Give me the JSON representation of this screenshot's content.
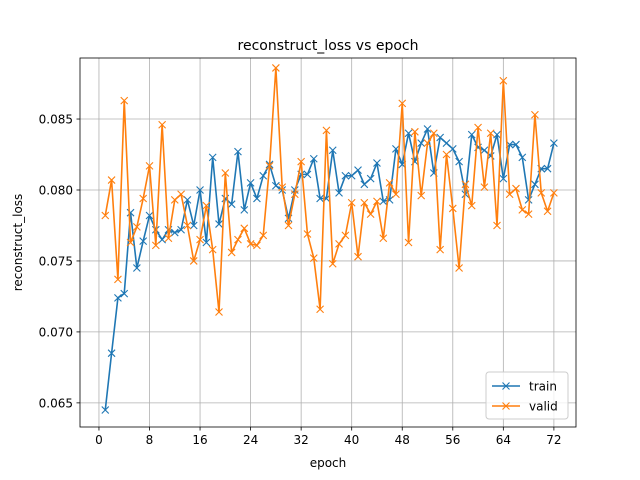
{
  "chart_data": {
    "type": "line",
    "title": "reconstruct_loss vs epoch",
    "xlabel": "epoch",
    "ylabel": "reconstruct_loss",
    "xlim": [
      -3,
      75.5
    ],
    "ylim": [
      0.0633,
      0.0893
    ],
    "xticks": [
      0,
      8,
      16,
      24,
      32,
      40,
      48,
      56,
      64,
      72
    ],
    "yticks": [
      0.065,
      0.07,
      0.075,
      0.08,
      0.085
    ],
    "ytick_labels": [
      "0.065",
      "0.070",
      "0.075",
      "0.080",
      "0.085"
    ],
    "grid": true,
    "legend_position": "lower-right",
    "marker": "x",
    "x": [
      1,
      2,
      3,
      4,
      5,
      6,
      7,
      8,
      9,
      10,
      11,
      12,
      13,
      14,
      15,
      16,
      17,
      18,
      19,
      20,
      21,
      22,
      23,
      24,
      25,
      26,
      27,
      28,
      29,
      30,
      31,
      32,
      33,
      34,
      35,
      36,
      37,
      38,
      39,
      40,
      41,
      42,
      43,
      44,
      45,
      46,
      47,
      48,
      49,
      50,
      51,
      52,
      53,
      54,
      55,
      56,
      57,
      58,
      59,
      60,
      61,
      62,
      63,
      64,
      65,
      66,
      67,
      68,
      69,
      70,
      71,
      72
    ],
    "series": [
      {
        "name": "train",
        "color": "#1f77b4",
        "values": [
          0.0645,
          0.0685,
          0.0724,
          0.0727,
          0.0784,
          0.0745,
          0.0764,
          0.0782,
          0.0772,
          0.0765,
          0.0772,
          0.077,
          0.0772,
          0.0793,
          0.0775,
          0.08,
          0.0763,
          0.0823,
          0.0776,
          0.0794,
          0.079,
          0.0827,
          0.0786,
          0.0805,
          0.0794,
          0.081,
          0.0818,
          0.0803,
          0.08,
          0.078,
          0.08,
          0.0811,
          0.0811,
          0.0822,
          0.0794,
          0.0794,
          0.0828,
          0.0798,
          0.081,
          0.081,
          0.0814,
          0.0804,
          0.0808,
          0.0819,
          0.0792,
          0.0793,
          0.0829,
          0.0818,
          0.084,
          0.082,
          0.0833,
          0.0843,
          0.0812,
          0.0837,
          0.0833,
          0.0829,
          0.082,
          0.0797,
          0.0839,
          0.083,
          0.0828,
          0.0824,
          0.0839,
          0.0808,
          0.0832,
          0.0832,
          0.0823,
          0.0793,
          0.0804,
          0.0815,
          0.0815,
          0.0833
        ]
      },
      {
        "name": "valid",
        "color": "#ff7f0e",
        "values": [
          0.0782,
          0.0807,
          0.0737,
          0.0863,
          0.0763,
          0.0774,
          0.0794,
          0.0817,
          0.0761,
          0.0846,
          0.0766,
          0.0793,
          0.0797,
          0.0775,
          0.075,
          0.0765,
          0.0789,
          0.0758,
          0.0714,
          0.0812,
          0.0756,
          0.0765,
          0.0773,
          0.0762,
          0.0761,
          0.0768,
          0.0817,
          0.0886,
          0.0802,
          0.0775,
          0.0797,
          0.082,
          0.0769,
          0.0752,
          0.0716,
          0.0842,
          0.0748,
          0.0762,
          0.0768,
          0.0791,
          0.0753,
          0.0791,
          0.0783,
          0.0792,
          0.0766,
          0.0805,
          0.0797,
          0.0861,
          0.0763,
          0.0841,
          0.0796,
          0.0833,
          0.084,
          0.0758,
          0.0825,
          0.0787,
          0.0745,
          0.0804,
          0.0789,
          0.0844,
          0.0802,
          0.084,
          0.0775,
          0.0877,
          0.0797,
          0.0801,
          0.0786,
          0.0783,
          0.0853,
          0.0798,
          0.0785,
          0.0798
        ]
      }
    ]
  }
}
